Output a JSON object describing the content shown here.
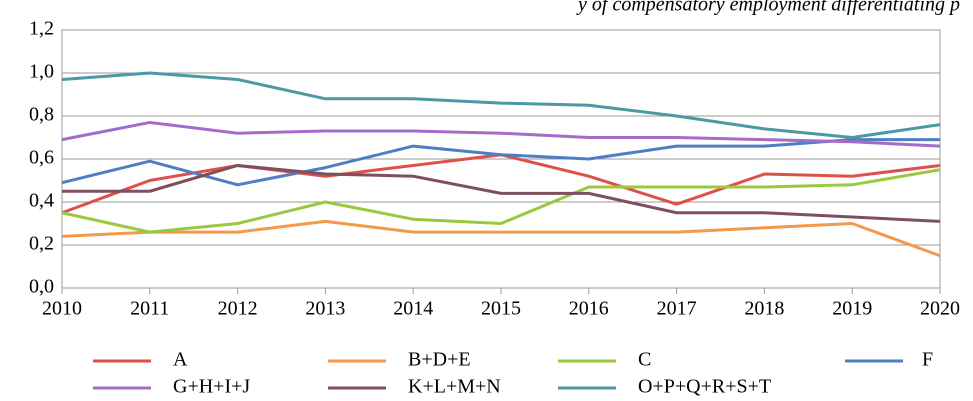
{
  "chart_data": {
    "type": "line",
    "title": "y of compensatory employment differentiating p",
    "x": [
      2010,
      2011,
      2012,
      2013,
      2014,
      2015,
      2016,
      2017,
      2018,
      2019,
      2020
    ],
    "xlim": [
      2010,
      2020
    ],
    "xticks": [
      2010,
      2011,
      2012,
      2013,
      2014,
      2015,
      2016,
      2017,
      2018,
      2019,
      2020
    ],
    "ylim": [
      0,
      1.2
    ],
    "yticks": [
      {
        "value": 0,
        "label": "0,0"
      },
      {
        "value": 0.2,
        "label": "0,2"
      },
      {
        "value": 0.4,
        "label": "0,4"
      },
      {
        "value": 0.6,
        "label": "0,6"
      },
      {
        "value": 0.8,
        "label": "0,8"
      },
      {
        "value": 1.0,
        "label": "1,0"
      },
      {
        "value": 1.2,
        "label": "1,2"
      }
    ],
    "grid": true,
    "legend": "bottom",
    "series": [
      {
        "name": "A",
        "color": "#e0504a",
        "values": [
          0.35,
          0.5,
          0.57,
          0.52,
          0.57,
          0.62,
          0.52,
          0.39,
          0.53,
          0.52,
          0.57
        ]
      },
      {
        "name": "B+D+E",
        "color": "#f39a4c",
        "values": [
          0.24,
          0.26,
          0.26,
          0.31,
          0.26,
          0.26,
          0.26,
          0.26,
          0.28,
          0.3,
          0.15
        ]
      },
      {
        "name": "C",
        "color": "#9cc83f",
        "values": [
          0.35,
          0.26,
          0.3,
          0.4,
          0.32,
          0.3,
          0.47,
          0.47,
          0.47,
          0.48,
          0.55
        ]
      },
      {
        "name": "F",
        "color": "#4f7ec4",
        "values": [
          0.49,
          0.59,
          0.48,
          0.56,
          0.66,
          0.62,
          0.6,
          0.66,
          0.66,
          0.69,
          0.69
        ]
      },
      {
        "name": "G+H+I+J",
        "color": "#a46cc8",
        "values": [
          0.69,
          0.77,
          0.72,
          0.73,
          0.73,
          0.72,
          0.7,
          0.7,
          0.69,
          0.68,
          0.66
        ]
      },
      {
        "name": "K+L+M+N",
        "color": "#7e4f5e",
        "values": [
          0.45,
          0.45,
          0.57,
          0.53,
          0.52,
          0.44,
          0.44,
          0.35,
          0.35,
          0.33,
          0.31
        ]
      },
      {
        "name": "O+P+Q+R+S+T",
        "color": "#4b99a5",
        "values": [
          0.97,
          1.0,
          0.97,
          0.88,
          0.88,
          0.86,
          0.85,
          0.8,
          0.74,
          0.7,
          0.76
        ]
      }
    ]
  }
}
